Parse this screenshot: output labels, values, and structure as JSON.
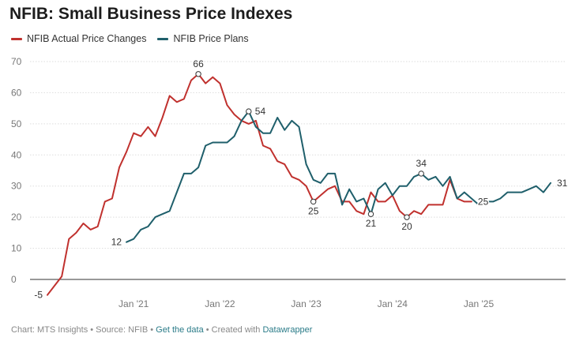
{
  "chart_data": {
    "type": "line",
    "title": "NFIB: Small Business Price Indexes",
    "xlabel": "",
    "ylabel": "",
    "ylim": [
      -5,
      70
    ],
    "yticks": [
      0,
      10,
      20,
      30,
      40,
      50,
      60,
      70
    ],
    "xticks": [
      "Jan '21",
      "Jan '22",
      "Jan '23",
      "Jan '24",
      "Jan '25"
    ],
    "start": "2020-01",
    "grid": true,
    "legend": "top-left",
    "colors": {
      "actual": "#c0312e",
      "plans": "#1f5f6b"
    },
    "series": [
      {
        "name": "NFIB Actual Price Changes",
        "key": "actual",
        "values": [
          -5,
          -2,
          1,
          13,
          15,
          18,
          16,
          17,
          25,
          26,
          36,
          41,
          47,
          46,
          49,
          46,
          52,
          59,
          57,
          58,
          64,
          66,
          63,
          65,
          63,
          56,
          53,
          51,
          50,
          51,
          43,
          42,
          38,
          37,
          33,
          32,
          30,
          25,
          27,
          29,
          30,
          25,
          25,
          22,
          21,
          28,
          25,
          25,
          27,
          22,
          20,
          22,
          21,
          24,
          24,
          24,
          32,
          26,
          25,
          25
        ]
      },
      {
        "name": "NFIB Price Plans",
        "key": "plans",
        "values": [
          null,
          null,
          null,
          null,
          null,
          null,
          null,
          null,
          null,
          null,
          null,
          12,
          13,
          16,
          17,
          20,
          21,
          22,
          28,
          34,
          34,
          36,
          43,
          44,
          44,
          44,
          46,
          51,
          54,
          49,
          47,
          47,
          52,
          48,
          51,
          49,
          37,
          32,
          31,
          34,
          34,
          24,
          29,
          25,
          26,
          21,
          29,
          31,
          27,
          30,
          30,
          33,
          34,
          32,
          33,
          30,
          33,
          26,
          28,
          26,
          24,
          25,
          25,
          26,
          28,
          28,
          28,
          29,
          30,
          28,
          31
        ]
      }
    ],
    "annotations": [
      {
        "series": "actual",
        "index": 0,
        "label": "-5",
        "circle": false,
        "pos": "left"
      },
      {
        "series": "actual",
        "index": 21,
        "label": "66",
        "circle": true,
        "pos": "above"
      },
      {
        "series": "actual",
        "index": 37,
        "label": "25",
        "circle": true,
        "pos": "below"
      },
      {
        "series": "actual",
        "index": 50,
        "label": "20",
        "circle": true,
        "pos": "below"
      },
      {
        "series": "actual",
        "index": 59,
        "label": "25",
        "circle": false,
        "pos": "right"
      },
      {
        "series": "plans",
        "index": 11,
        "label": "12",
        "circle": false,
        "pos": "left"
      },
      {
        "series": "plans",
        "index": 28,
        "label": "54",
        "circle": true,
        "pos": "right"
      },
      {
        "series": "plans",
        "index": 45,
        "label": "21",
        "circle": true,
        "pos": "below"
      },
      {
        "series": "plans",
        "index": 52,
        "label": "34",
        "circle": true,
        "pos": "above"
      },
      {
        "series": "plans",
        "index": 70,
        "label": "31",
        "circle": false,
        "pos": "right"
      }
    ]
  },
  "footer": {
    "prefix": "Chart: MTS Insights • Source: NFIB • ",
    "get_data": "Get the data",
    "mid": " • Created with ",
    "datawrapper": "Datawrapper"
  }
}
